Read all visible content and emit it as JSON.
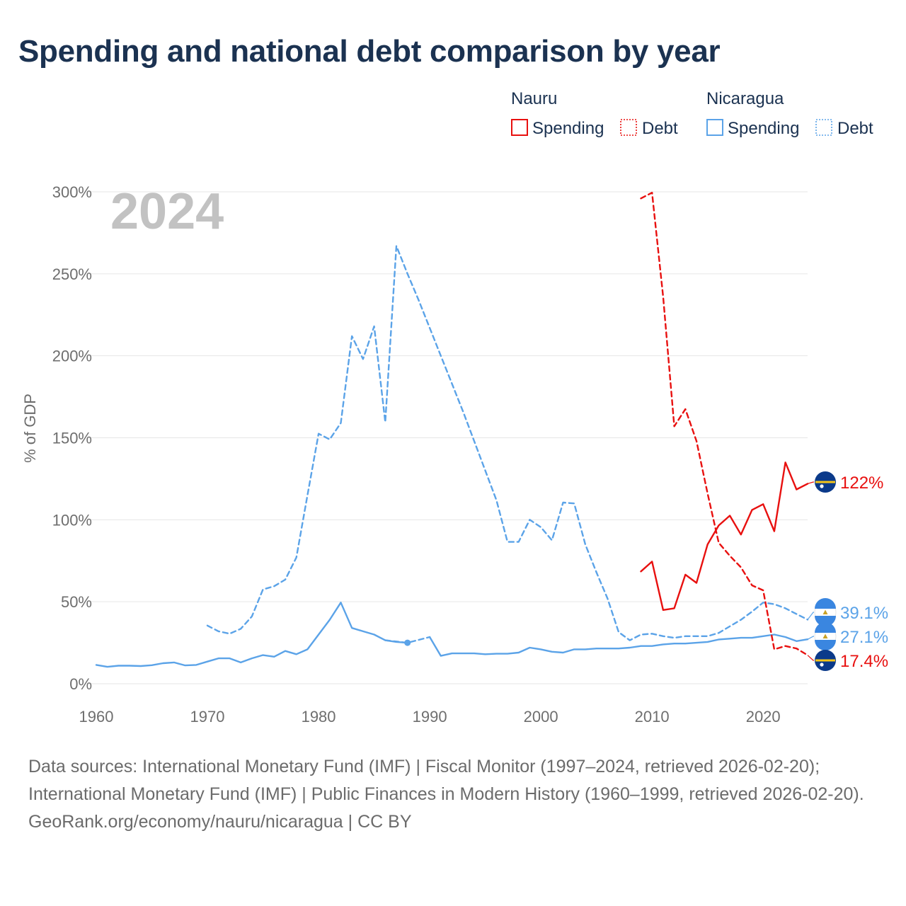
{
  "chart_data": {
    "type": "line",
    "title": "Spending and national debt comparison by year",
    "year_label": "2024",
    "ylabel": "% of GDP",
    "xlabel": "",
    "xlim": [
      1960,
      2024
    ],
    "ylim": [
      0,
      300
    ],
    "x_ticks": [
      1960,
      1970,
      1980,
      1990,
      2000,
      2010,
      2020
    ],
    "y_ticks": [
      0,
      50,
      100,
      150,
      200,
      250,
      300
    ],
    "y_tick_labels": [
      "0%",
      "50%",
      "100%",
      "150%",
      "200%",
      "250%",
      "300%"
    ],
    "grid": true,
    "legend": {
      "groups": [
        {
          "country": "Nauru",
          "color": "#e8100f",
          "items": [
            "Spending",
            "Debt"
          ]
        },
        {
          "country": "Nicaragua",
          "color": "#5ba3e8",
          "items": [
            "Spending",
            "Debt"
          ]
        }
      ]
    },
    "series": [
      {
        "name": "Nicaragua Spending",
        "country": "Nicaragua",
        "kind": "spending",
        "color": "#5ba3e8",
        "dashed": false,
        "points": [
          [
            1960,
            11.5
          ],
          [
            1961,
            10.3
          ],
          [
            1962,
            11
          ],
          [
            1963,
            11
          ],
          [
            1964,
            10.8
          ],
          [
            1965,
            11.3
          ],
          [
            1966,
            12.5
          ],
          [
            1967,
            13
          ],
          [
            1968,
            11.2
          ],
          [
            1969,
            11.5
          ],
          [
            1970,
            13.5
          ],
          [
            1971,
            15.5
          ],
          [
            1972,
            15.5
          ],
          [
            1973,
            13
          ],
          [
            1974,
            15.5
          ],
          [
            1975,
            17.5
          ],
          [
            1976,
            16.5
          ],
          [
            1977,
            20
          ],
          [
            1978,
            18
          ],
          [
            1979,
            21
          ],
          [
            1980,
            30
          ],
          [
            1981,
            39
          ],
          [
            1982,
            49.5
          ],
          [
            1983,
            34
          ],
          [
            1984,
            32
          ],
          [
            1985,
            30
          ],
          [
            1986,
            26.5
          ],
          [
            1987,
            25.5
          ],
          [
            1988,
            25
          ]
        ]
      },
      {
        "name": "Nicaragua Spending (bridge)",
        "country": "Nicaragua",
        "kind": "spending",
        "color": "#5ba3e8",
        "dashed": true,
        "points": [
          [
            1986,
            26.5
          ],
          [
            1988,
            25
          ],
          [
            1990,
            28.5
          ]
        ]
      },
      {
        "name": "Nicaragua Spending (cont.)",
        "country": "Nicaragua",
        "kind": "spending",
        "color": "#5ba3e8",
        "dashed": false,
        "points": [
          [
            1990,
            28.5
          ],
          [
            1991,
            17
          ],
          [
            1992,
            18.5
          ],
          [
            1993,
            18.5
          ],
          [
            1994,
            18.5
          ],
          [
            1995,
            18
          ],
          [
            1996,
            18.3
          ],
          [
            1997,
            18.3
          ],
          [
            1998,
            19
          ],
          [
            1999,
            22
          ],
          [
            2000,
            21
          ],
          [
            2001,
            19.5
          ],
          [
            2002,
            19
          ],
          [
            2003,
            21
          ],
          [
            2004,
            21
          ],
          [
            2005,
            21.5
          ],
          [
            2006,
            21.5
          ],
          [
            2007,
            21.5
          ],
          [
            2008,
            22
          ],
          [
            2009,
            23
          ],
          [
            2010,
            23
          ],
          [
            2011,
            24
          ],
          [
            2012,
            24.5
          ],
          [
            2013,
            24.5
          ],
          [
            2014,
            25
          ],
          [
            2015,
            25.5
          ],
          [
            2016,
            27
          ],
          [
            2017,
            27.5
          ],
          [
            2018,
            28
          ],
          [
            2019,
            28
          ],
          [
            2020,
            29
          ],
          [
            2021,
            30
          ],
          [
            2022,
            28.5
          ],
          [
            2023,
            26
          ],
          [
            2024,
            27.1
          ]
        ]
      },
      {
        "name": "Nicaragua Debt",
        "country": "Nicaragua",
        "kind": "debt",
        "color": "#5ba3e8",
        "dashed": true,
        "points": [
          [
            1970,
            35.5
          ],
          [
            1971,
            32
          ],
          [
            1972,
            30.5
          ],
          [
            1973,
            33.5
          ],
          [
            1974,
            41
          ],
          [
            1975,
            57.5
          ],
          [
            1976,
            59.5
          ],
          [
            1977,
            63.5
          ],
          [
            1978,
            77
          ],
          [
            1979,
            115
          ],
          [
            1980,
            152.5
          ],
          [
            1981,
            149
          ],
          [
            1982,
            159
          ],
          [
            1983,
            212
          ],
          [
            1984,
            198
          ],
          [
            1985,
            218
          ],
          [
            1986,
            159.5
          ],
          [
            1987,
            267
          ],
          [
            1988,
            250
          ],
          [
            1989,
            234
          ],
          [
            1990,
            217
          ],
          [
            1991,
            200
          ],
          [
            1992,
            183
          ],
          [
            1993,
            166
          ],
          [
            1994,
            148
          ],
          [
            1995,
            130
          ],
          [
            1996,
            112
          ],
          [
            1997,
            86.5
          ],
          [
            1998,
            86.5
          ],
          [
            1999,
            100
          ],
          [
            2000,
            95.5
          ],
          [
            2001,
            87.5
          ],
          [
            2002,
            110.5
          ],
          [
            2003,
            110
          ],
          [
            2004,
            85
          ],
          [
            2005,
            68
          ],
          [
            2006,
            52
          ],
          [
            2007,
            31.5
          ],
          [
            2008,
            26.5
          ],
          [
            2009,
            30
          ],
          [
            2010,
            30.5
          ],
          [
            2011,
            29
          ],
          [
            2012,
            28
          ],
          [
            2013,
            29
          ],
          [
            2014,
            29
          ],
          [
            2015,
            29
          ],
          [
            2016,
            31
          ],
          [
            2017,
            35
          ],
          [
            2018,
            39
          ],
          [
            2019,
            44
          ],
          [
            2020,
            49.5
          ],
          [
            2021,
            48.5
          ],
          [
            2022,
            46
          ],
          [
            2023,
            42.5
          ],
          [
            2024,
            39.1
          ]
        ]
      },
      {
        "name": "Nauru Spending",
        "country": "Nauru",
        "kind": "spending",
        "color": "#e8100f",
        "dashed": false,
        "points": [
          [
            2009,
            68.5
          ],
          [
            2010,
            74.5
          ],
          [
            2011,
            45
          ],
          [
            2012,
            46
          ],
          [
            2013,
            66.5
          ],
          [
            2014,
            61.5
          ],
          [
            2015,
            85
          ],
          [
            2016,
            96.5
          ],
          [
            2017,
            102.5
          ],
          [
            2018,
            91
          ],
          [
            2019,
            106
          ],
          [
            2020,
            109.5
          ],
          [
            2021,
            93
          ],
          [
            2022,
            135
          ],
          [
            2023,
            118.5
          ],
          [
            2024,
            122
          ]
        ]
      },
      {
        "name": "Nauru Debt",
        "country": "Nauru",
        "kind": "debt",
        "color": "#e8100f",
        "dashed": true,
        "points": [
          [
            2009,
            296
          ],
          [
            2010,
            299.5
          ],
          [
            2011,
            236
          ],
          [
            2012,
            157
          ],
          [
            2013,
            167.5
          ],
          [
            2014,
            148
          ],
          [
            2015,
            116
          ],
          [
            2016,
            86
          ],
          [
            2017,
            78
          ],
          [
            2018,
            71
          ],
          [
            2019,
            60
          ],
          [
            2020,
            57
          ],
          [
            2021,
            21
          ],
          [
            2022,
            23
          ],
          [
            2023,
            21.5
          ],
          [
            2024,
            17.4
          ]
        ]
      }
    ],
    "end_labels": [
      {
        "country": "Nauru",
        "text": "122%",
        "value": 122,
        "color": "#e8100f"
      },
      {
        "country": "Nicaragua",
        "text": "39.1%",
        "value": 39.1,
        "color": "#5ba3e8"
      },
      {
        "country": "Nicaragua",
        "text": "27.1%",
        "value": 27.1,
        "color": "#5ba3e8"
      },
      {
        "country": "Nauru",
        "text": "17.4%",
        "value": 17.4,
        "color": "#e8100f"
      }
    ]
  },
  "footer": {
    "sources": "Data sources: International Monetary Fund (IMF) | Fiscal Monitor (1997–2024, retrieved 2026-02-20); International Monetary Fund (IMF) | Public Finances in Modern History (1960–1999, retrieved 2026-02-20).",
    "credit": "GeoRank.org/economy/nauru/nicaragua | CC BY"
  }
}
